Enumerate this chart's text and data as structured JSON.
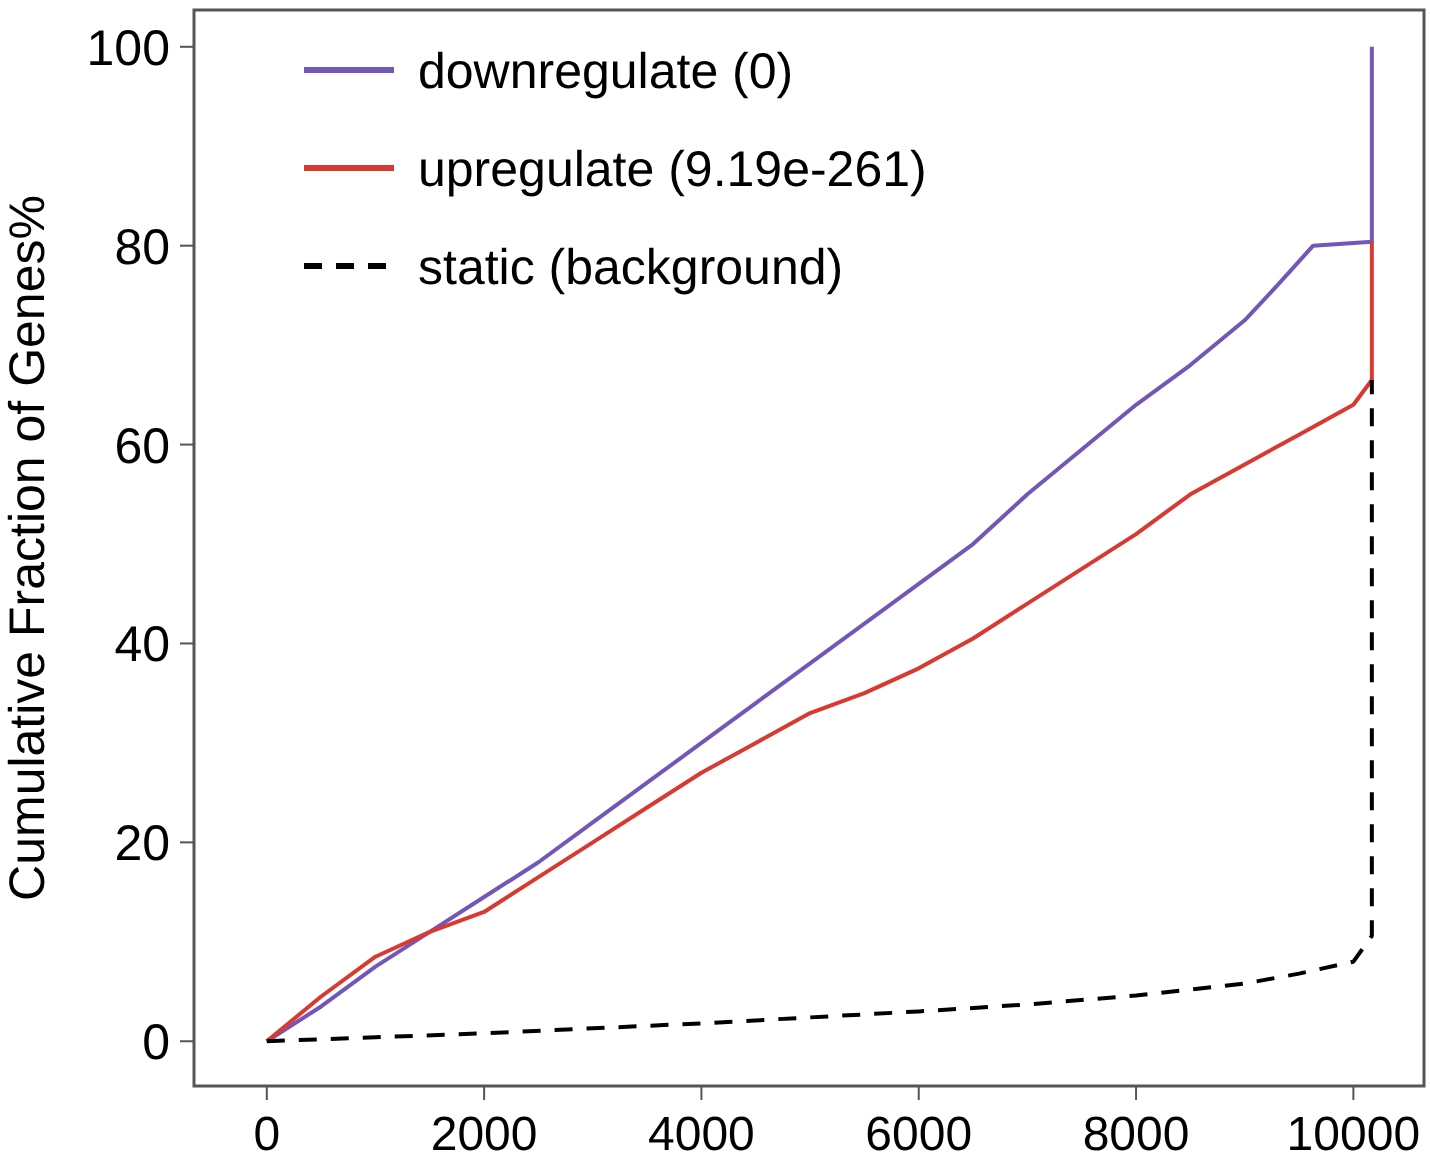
{
  "chart_data": {
    "type": "line",
    "ylabel": "Cumulative Fraction of Genes%",
    "xlim": [
      -670,
      10650
    ],
    "ylim": [
      -4.5,
      103.7
    ],
    "xticks": [
      0,
      2000,
      4000,
      6000,
      8000,
      10000
    ],
    "yticks": [
      0,
      20,
      40,
      60,
      80,
      100
    ],
    "grid": false,
    "legend": "top left",
    "series": [
      {
        "name": "downregulate (0)",
        "color": "#7256b8",
        "line_style": "solid",
        "x": [
          0,
          500,
          1000,
          1500,
          2000,
          2500,
          3000,
          3500,
          4000,
          4500,
          5000,
          5500,
          6000,
          6500,
          7000,
          7500,
          8000,
          8500,
          9000,
          9300,
          9630,
          10170,
          10170
        ],
        "values": [
          0,
          3.5,
          7.5,
          11,
          14.5,
          18,
          22,
          26,
          30,
          34,
          38,
          42,
          46,
          50,
          55,
          59.5,
          64,
          68,
          72.5,
          76,
          80,
          80.4,
          100
        ]
      },
      {
        "name": "upregulate (9.19e-261)",
        "color": "#d83a32",
        "line_style": "solid",
        "x": [
          0,
          500,
          1000,
          1500,
          2000,
          2500,
          3000,
          3500,
          4000,
          4500,
          5000,
          5500,
          6000,
          6500,
          7000,
          7500,
          8000,
          8500,
          9000,
          9500,
          10000,
          10170,
          10170
        ],
        "values": [
          0,
          4.5,
          8.5,
          11,
          13,
          16.5,
          20,
          23.5,
          27,
          30,
          33,
          35,
          37.5,
          40.5,
          44,
          47.5,
          51,
          55,
          58,
          61,
          64,
          66.5,
          80.4
        ]
      },
      {
        "name": "static (background)",
        "color": "#000000",
        "line_style": "dashed",
        "x": [
          0,
          1000,
          2000,
          3000,
          4000,
          5000,
          6000,
          7000,
          8000,
          9000,
          9500,
          10000,
          10170,
          10170
        ],
        "values": [
          0,
          0.4,
          0.8,
          1.3,
          1.8,
          2.4,
          3,
          3.7,
          4.6,
          5.8,
          6.8,
          8,
          10.6,
          66.5
        ]
      }
    ]
  }
}
